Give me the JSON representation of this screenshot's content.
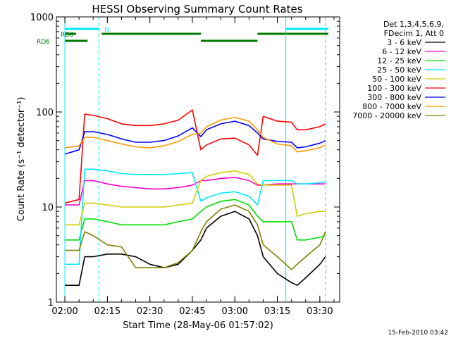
{
  "chart_data": {
    "type": "line",
    "title": "HESSI Observing Summary Count Rates",
    "xlabel": "Start Time (28-May-06 01:57:02)",
    "ylabel": "Count Rate (s⁻¹ detector⁻¹)",
    "yscale": "log",
    "ylim": [
      1,
      1000
    ],
    "xlim_minutes_utc": [
      "01:57",
      "03:37"
    ],
    "x_tick_labels": [
      "02:00",
      "02:15",
      "02:30",
      "02:45",
      "03:00",
      "03:15",
      "03:30"
    ],
    "y_tick_labels": [
      "1",
      "10",
      "100",
      "1000"
    ],
    "legend_placement": "right, outside plot",
    "legend_header": [
      "Det 1,3,4,5,6,9,",
      "FDecim 1, Att 0"
    ],
    "footer_timestamp": "15-Feb-2010 03:42",
    "flags": [
      {
        "label": "N",
        "color": "#00e8ff",
        "segments": [
          [
            "02:00",
            "02:12"
          ],
          [
            "03:18",
            "03:33"
          ]
        ]
      },
      {
        "label": "RD0",
        "color": "#007800",
        "segments": [
          [
            "02:00",
            "02:04"
          ],
          [
            "02:13",
            "02:48"
          ],
          [
            "03:08",
            "03:33"
          ]
        ]
      },
      {
        "label": "RD6",
        "color": "#007800",
        "segments": [
          [
            "02:00",
            "02:08"
          ],
          [
            "02:48",
            "03:08"
          ]
        ]
      }
    ],
    "vertical_markers": [
      {
        "time": "02:00",
        "style": "solid",
        "color": "#00e8ff"
      },
      {
        "time": "02:12",
        "style": "dashed",
        "color": "#00e8ff"
      },
      {
        "time": "03:18",
        "style": "solid",
        "color": "#00e8ff"
      },
      {
        "time": "03:32",
        "style": "dashed",
        "color": "#00e8ff"
      }
    ],
    "x": [
      "02:00",
      "02:05",
      "02:07",
      "02:10",
      "02:15",
      "02:20",
      "02:25",
      "02:30",
      "02:35",
      "02:40",
      "02:45",
      "02:48",
      "02:50",
      "02:55",
      "03:00",
      "03:05",
      "03:08",
      "03:10",
      "03:15",
      "03:20",
      "03:22",
      "03:25",
      "03:30",
      "03:32"
    ],
    "series": [
      {
        "name": "3 - 6 keV",
        "color": "#000000",
        "values": [
          1.5,
          1.5,
          3.0,
          3.0,
          3.2,
          3.2,
          3.0,
          2.5,
          2.3,
          2.5,
          3.5,
          4.5,
          6.0,
          8.0,
          9.0,
          7.5,
          5.0,
          3.0,
          2.0,
          1.6,
          1.5,
          1.8,
          2.5,
          3.0
        ]
      },
      {
        "name": "6 - 12 keV",
        "color": "#ff00cc",
        "values": [
          10.5,
          10.5,
          19.0,
          19.0,
          17.5,
          16.5,
          16.0,
          15.5,
          15.5,
          16.0,
          17.0,
          19.0,
          19.0,
          20.0,
          20.5,
          19.0,
          17.0,
          17.0,
          17.5,
          17.5,
          17.5,
          17.5,
          17.5,
          17.5
        ]
      },
      {
        "name": "12 - 25 keV",
        "color": "#00e000",
        "values": [
          4.5,
          4.5,
          7.5,
          7.5,
          7.0,
          6.5,
          6.5,
          6.5,
          6.5,
          7.0,
          7.5,
          9.0,
          10.0,
          11.5,
          12.0,
          10.5,
          8.0,
          7.0,
          7.0,
          7.0,
          4.5,
          4.5,
          4.8,
          5.0
        ]
      },
      {
        "name": "25 - 50 keV",
        "color": "#00e8ff",
        "values": [
          2.5,
          2.5,
          25.0,
          25.0,
          24.0,
          22.5,
          22.0,
          22.0,
          22.0,
          22.5,
          23.0,
          11.5,
          12.5,
          14.0,
          14.5,
          13.0,
          10.5,
          19.0,
          19.0,
          19.0,
          17.5,
          17.5,
          18.0,
          18.5
        ]
      },
      {
        "name": "50 - 100 keV",
        "color": "#d0d000",
        "values": [
          6.5,
          6.5,
          11.0,
          11.0,
          10.5,
          10.0,
          10.0,
          10.0,
          10.0,
          10.5,
          11.0,
          19.0,
          21.0,
          23.0,
          24.0,
          22.0,
          17.5,
          17.0,
          17.0,
          17.0,
          8.0,
          8.5,
          9.0,
          9.0
        ]
      },
      {
        "name": "100 - 300 keV",
        "color": "#ff0000",
        "values": [
          11.0,
          12.0,
          95.0,
          92.0,
          85.0,
          75.0,
          72.0,
          72.0,
          75.0,
          82.0,
          105.0,
          40.0,
          45.0,
          52.0,
          53.0,
          45.0,
          35.0,
          90.0,
          80.0,
          78.0,
          65.0,
          65.0,
          70.0,
          75.0
        ]
      },
      {
        "name": "300 - 800 keV",
        "color": "#0000ff",
        "values": [
          36.0,
          40.0,
          62.0,
          62.0,
          58.0,
          52.0,
          48.0,
          48.0,
          50.0,
          56.0,
          68.0,
          55.0,
          65.0,
          75.0,
          80.0,
          72.0,
          60.0,
          52.0,
          49.0,
          48.0,
          42.0,
          43.0,
          47.0,
          50.0
        ]
      },
      {
        "name": "800 - 7000 keV",
        "color": "#ff9900",
        "values": [
          42.0,
          44.0,
          54.0,
          54.0,
          50.0,
          46.0,
          43.0,
          42.0,
          44.0,
          49.0,
          58.0,
          60.0,
          70.0,
          82.0,
          88.0,
          80.0,
          65.0,
          54.0,
          46.0,
          44.0,
          38.0,
          39.0,
          42.0,
          45.0
        ]
      },
      {
        "name": "7000 - 20000 keV",
        "color": "#808000",
        "values": [
          3.5,
          3.5,
          5.5,
          5.0,
          4.0,
          3.8,
          2.3,
          2.3,
          2.3,
          2.6,
          3.5,
          5.5,
          7.0,
          9.5,
          10.5,
          9.0,
          6.5,
          4.0,
          3.0,
          2.2,
          2.5,
          3.0,
          4.0,
          5.5
        ]
      }
    ]
  }
}
